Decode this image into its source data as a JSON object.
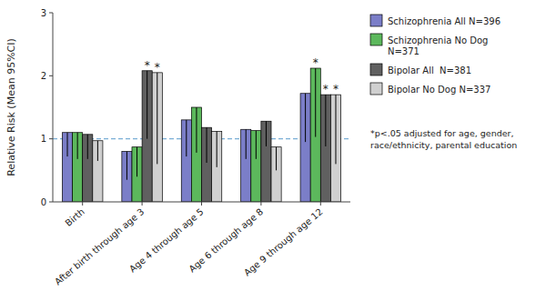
{
  "chart_data": {
    "type": "bar",
    "ylabel": "Relative Risk (Mean 95%CI)",
    "categories": [
      "Birth",
      "After birth through age 3",
      "Age 4 through age 5",
      "Age 6 through age 8",
      "Age 9 through age 12"
    ],
    "series": [
      {
        "name": "Schizophrenia All N=396",
        "color": "#7b7ec8",
        "values": [
          1.1,
          0.8,
          1.3,
          1.15,
          1.72
        ],
        "ci_low": [
          0.72,
          0.35,
          0.72,
          0.68,
          0.95
        ],
        "ci_high": [
          1.1,
          0.8,
          1.3,
          1.15,
          1.72
        ]
      },
      {
        "name": "Schizophrenia No Dog\nN=371",
        "color": "#5cb85c",
        "values": [
          1.1,
          0.87,
          1.5,
          1.13,
          2.12
        ],
        "ci_low": [
          0.68,
          0.4,
          0.78,
          0.68,
          1.03
        ],
        "ci_high": [
          1.1,
          0.87,
          1.5,
          1.13,
          2.12
        ]
      },
      {
        "name": "Bipolar All  N=381",
        "color": "#606060",
        "values": [
          1.07,
          2.08,
          1.18,
          1.28,
          1.7
        ],
        "ci_low": [
          0.68,
          1.0,
          0.62,
          0.88,
          0.88
        ],
        "ci_high": [
          1.07,
          2.08,
          1.18,
          1.28,
          1.7
        ]
      },
      {
        "name": "Bipolar No Dog N=337",
        "color": "#d0d0d0",
        "values": [
          0.97,
          2.05,
          1.12,
          0.87,
          1.7
        ],
        "ci_low": [
          0.65,
          0.6,
          0.55,
          0.5,
          0.6
        ],
        "ci_high": [
          0.97,
          2.05,
          1.12,
          0.87,
          1.7
        ]
      }
    ],
    "annotations": [
      {
        "text": "*",
        "series": 2,
        "category": 1
      },
      {
        "text": "*",
        "series": 2,
        "category": 4
      },
      {
        "text": "*",
        "series": 3,
        "category": 1
      },
      {
        "text": "*",
        "series": 3,
        "category": 4
      },
      {
        "text": "*",
        "series": 1,
        "category": 4
      }
    ],
    "hlines": [
      {
        "value": 1.0,
        "color": "#7aaed6",
        "line_style": "dashed"
      }
    ],
    "footnote": "*p<.05 adjusted for age, gender,\nrace/ethnicity, parental education",
    "ylim": [
      0,
      3
    ],
    "yticks": [
      0,
      1,
      2,
      3
    ],
    "grid": false,
    "legend": "right"
  }
}
